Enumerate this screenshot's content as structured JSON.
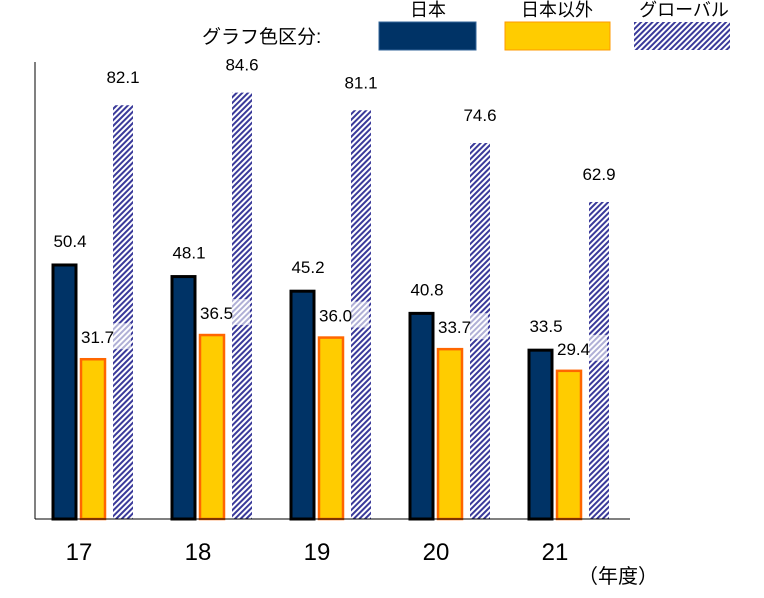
{
  "chart_data": {
    "type": "bar",
    "legend_title": "グラフ色区分:",
    "legend_placement": "top",
    "categories": [
      "17",
      "18",
      "19",
      "20",
      "21"
    ],
    "x_unit_label": "（年度）",
    "ylim": [
      0,
      90
    ],
    "grid": false,
    "series": [
      {
        "name": "日本",
        "color": "#003366",
        "pattern": "solid",
        "values": [
          50.4,
          48.1,
          45.2,
          40.8,
          33.5
        ]
      },
      {
        "name": "日本以外",
        "color": "#FFCC00",
        "border": "#FF6600",
        "pattern": "solid",
        "values": [
          31.7,
          36.5,
          36.0,
          33.7,
          29.4
        ]
      },
      {
        "name": "グローバル",
        "color": "#3A3A9A",
        "pattern": "diagonal-hatch",
        "values": [
          82.1,
          84.6,
          81.1,
          74.6,
          62.9
        ]
      }
    ],
    "value_labels": [
      [
        "50.4",
        "48.1",
        "45.2",
        "40.8",
        "33.5"
      ],
      [
        "31.7",
        "36.5",
        "36.0",
        "33.7",
        "29.4"
      ],
      [
        "82.1",
        "84.6",
        "81.1",
        "74.6",
        "62.9"
      ]
    ]
  }
}
